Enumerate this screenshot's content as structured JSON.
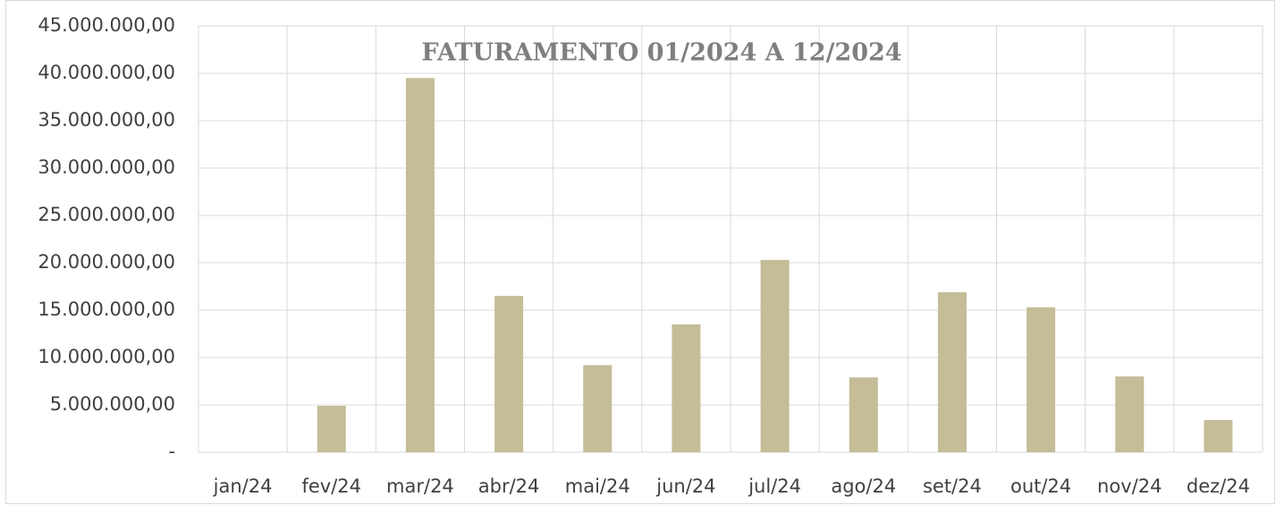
{
  "chart_data": {
    "type": "bar",
    "title": "FATURAMENTO 01/2024 A 12/2024",
    "categories": [
      "jan/24",
      "fev/24",
      "mar/24",
      "abr/24",
      "mai/24",
      "jun/24",
      "jul/24",
      "ago/24",
      "set/24",
      "out/24",
      "nov/24",
      "dez/24"
    ],
    "values": [
      0,
      4900000,
      39500000,
      16500000,
      9200000,
      13500000,
      20300000,
      7900000,
      16900000,
      15300000,
      8000000,
      3400000
    ],
    "color": "#c4bd97",
    "ylim": [
      0,
      45000000
    ],
    "yticks": [
      {
        "value": 0,
        "label": "-"
      },
      {
        "value": 5000000,
        "label": "5.000.000,00"
      },
      {
        "value": 10000000,
        "label": "10.000.000,00"
      },
      {
        "value": 15000000,
        "label": "15.000.000,00"
      },
      {
        "value": 20000000,
        "label": "20.000.000,00"
      },
      {
        "value": 25000000,
        "label": "25.000.000,00"
      },
      {
        "value": 30000000,
        "label": "30.000.000,00"
      },
      {
        "value": 35000000,
        "label": "35.000.000,00"
      },
      {
        "value": 40000000,
        "label": "40.000.000,00"
      },
      {
        "value": 45000000,
        "label": "45.000.000,00"
      }
    ],
    "grid": true
  }
}
